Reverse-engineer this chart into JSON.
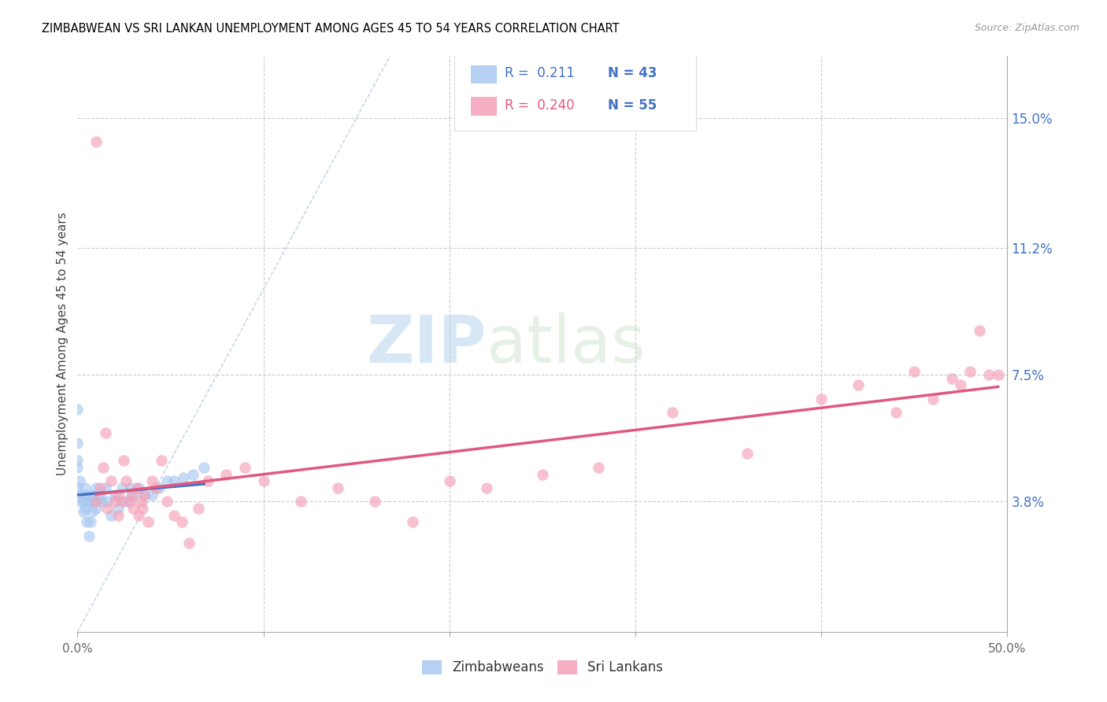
{
  "title": "ZIMBABWEAN VS SRI LANKAN UNEMPLOYMENT AMONG AGES 45 TO 54 YEARS CORRELATION CHART",
  "source": "Source: ZipAtlas.com",
  "ylabel": "Unemployment Among Ages 45 to 54 years",
  "xlim": [
    0,
    0.5
  ],
  "ylim": [
    0,
    0.168
  ],
  "yticks_right": [
    0.038,
    0.075,
    0.112,
    0.15
  ],
  "ytick_right_labels": [
    "3.8%",
    "7.5%",
    "11.2%",
    "15.0%"
  ],
  "zimbabwe_color": "#a8c8f0",
  "srilanka_color": "#f4a0b8",
  "zimbabwe_line_color": "#4472C4",
  "srilanka_line_color": "#e05880",
  "ref_line_color": "#b8cce4",
  "legend_r_zim": "R =  0.211",
  "legend_n_zim": "N = 43",
  "legend_r_sri": "R =  0.240",
  "legend_n_sri": "N = 55",
  "legend_label_zim": "Zimbabweans",
  "legend_label_sri": "Sri Lankans",
  "n_color": "#4472C4",
  "zimbabwe_x": [
    0.0,
    0.0,
    0.0,
    0.0,
    0.0,
    0.001,
    0.002,
    0.002,
    0.003,
    0.003,
    0.004,
    0.004,
    0.005,
    0.005,
    0.006,
    0.006,
    0.007,
    0.007,
    0.008,
    0.008,
    0.009,
    0.01,
    0.01,
    0.012,
    0.013,
    0.015,
    0.016,
    0.018,
    0.02,
    0.022,
    0.024,
    0.026,
    0.028,
    0.03,
    0.033,
    0.036,
    0.04,
    0.044,
    0.048,
    0.052,
    0.057,
    0.062,
    0.068
  ],
  "zimbabwe_y": [
    0.065,
    0.055,
    0.05,
    0.048,
    0.042,
    0.044,
    0.04,
    0.038,
    0.038,
    0.035,
    0.042,
    0.036,
    0.04,
    0.032,
    0.038,
    0.028,
    0.038,
    0.032,
    0.04,
    0.035,
    0.038,
    0.042,
    0.036,
    0.04,
    0.038,
    0.042,
    0.038,
    0.034,
    0.04,
    0.036,
    0.042,
    0.038,
    0.042,
    0.04,
    0.042,
    0.04,
    0.04,
    0.042,
    0.044,
    0.044,
    0.045,
    0.046,
    0.048
  ],
  "srilanka_x": [
    0.01,
    0.01,
    0.012,
    0.014,
    0.015,
    0.016,
    0.018,
    0.02,
    0.022,
    0.022,
    0.024,
    0.025,
    0.026,
    0.028,
    0.029,
    0.03,
    0.032,
    0.033,
    0.034,
    0.035,
    0.036,
    0.038,
    0.04,
    0.042,
    0.045,
    0.048,
    0.052,
    0.056,
    0.06,
    0.065,
    0.07,
    0.08,
    0.09,
    0.1,
    0.12,
    0.14,
    0.16,
    0.18,
    0.2,
    0.22,
    0.25,
    0.28,
    0.32,
    0.36,
    0.4,
    0.42,
    0.44,
    0.45,
    0.46,
    0.47,
    0.475,
    0.48,
    0.485,
    0.49,
    0.495
  ],
  "srilanka_y": [
    0.143,
    0.038,
    0.042,
    0.048,
    0.058,
    0.036,
    0.044,
    0.038,
    0.04,
    0.034,
    0.038,
    0.05,
    0.044,
    0.038,
    0.04,
    0.036,
    0.042,
    0.034,
    0.038,
    0.036,
    0.04,
    0.032,
    0.044,
    0.042,
    0.05,
    0.038,
    0.034,
    0.032,
    0.026,
    0.036,
    0.044,
    0.046,
    0.048,
    0.044,
    0.038,
    0.042,
    0.038,
    0.032,
    0.044,
    0.042,
    0.046,
    0.048,
    0.064,
    0.052,
    0.068,
    0.072,
    0.064,
    0.076,
    0.068,
    0.074,
    0.072,
    0.076,
    0.088,
    0.075,
    0.075
  ]
}
